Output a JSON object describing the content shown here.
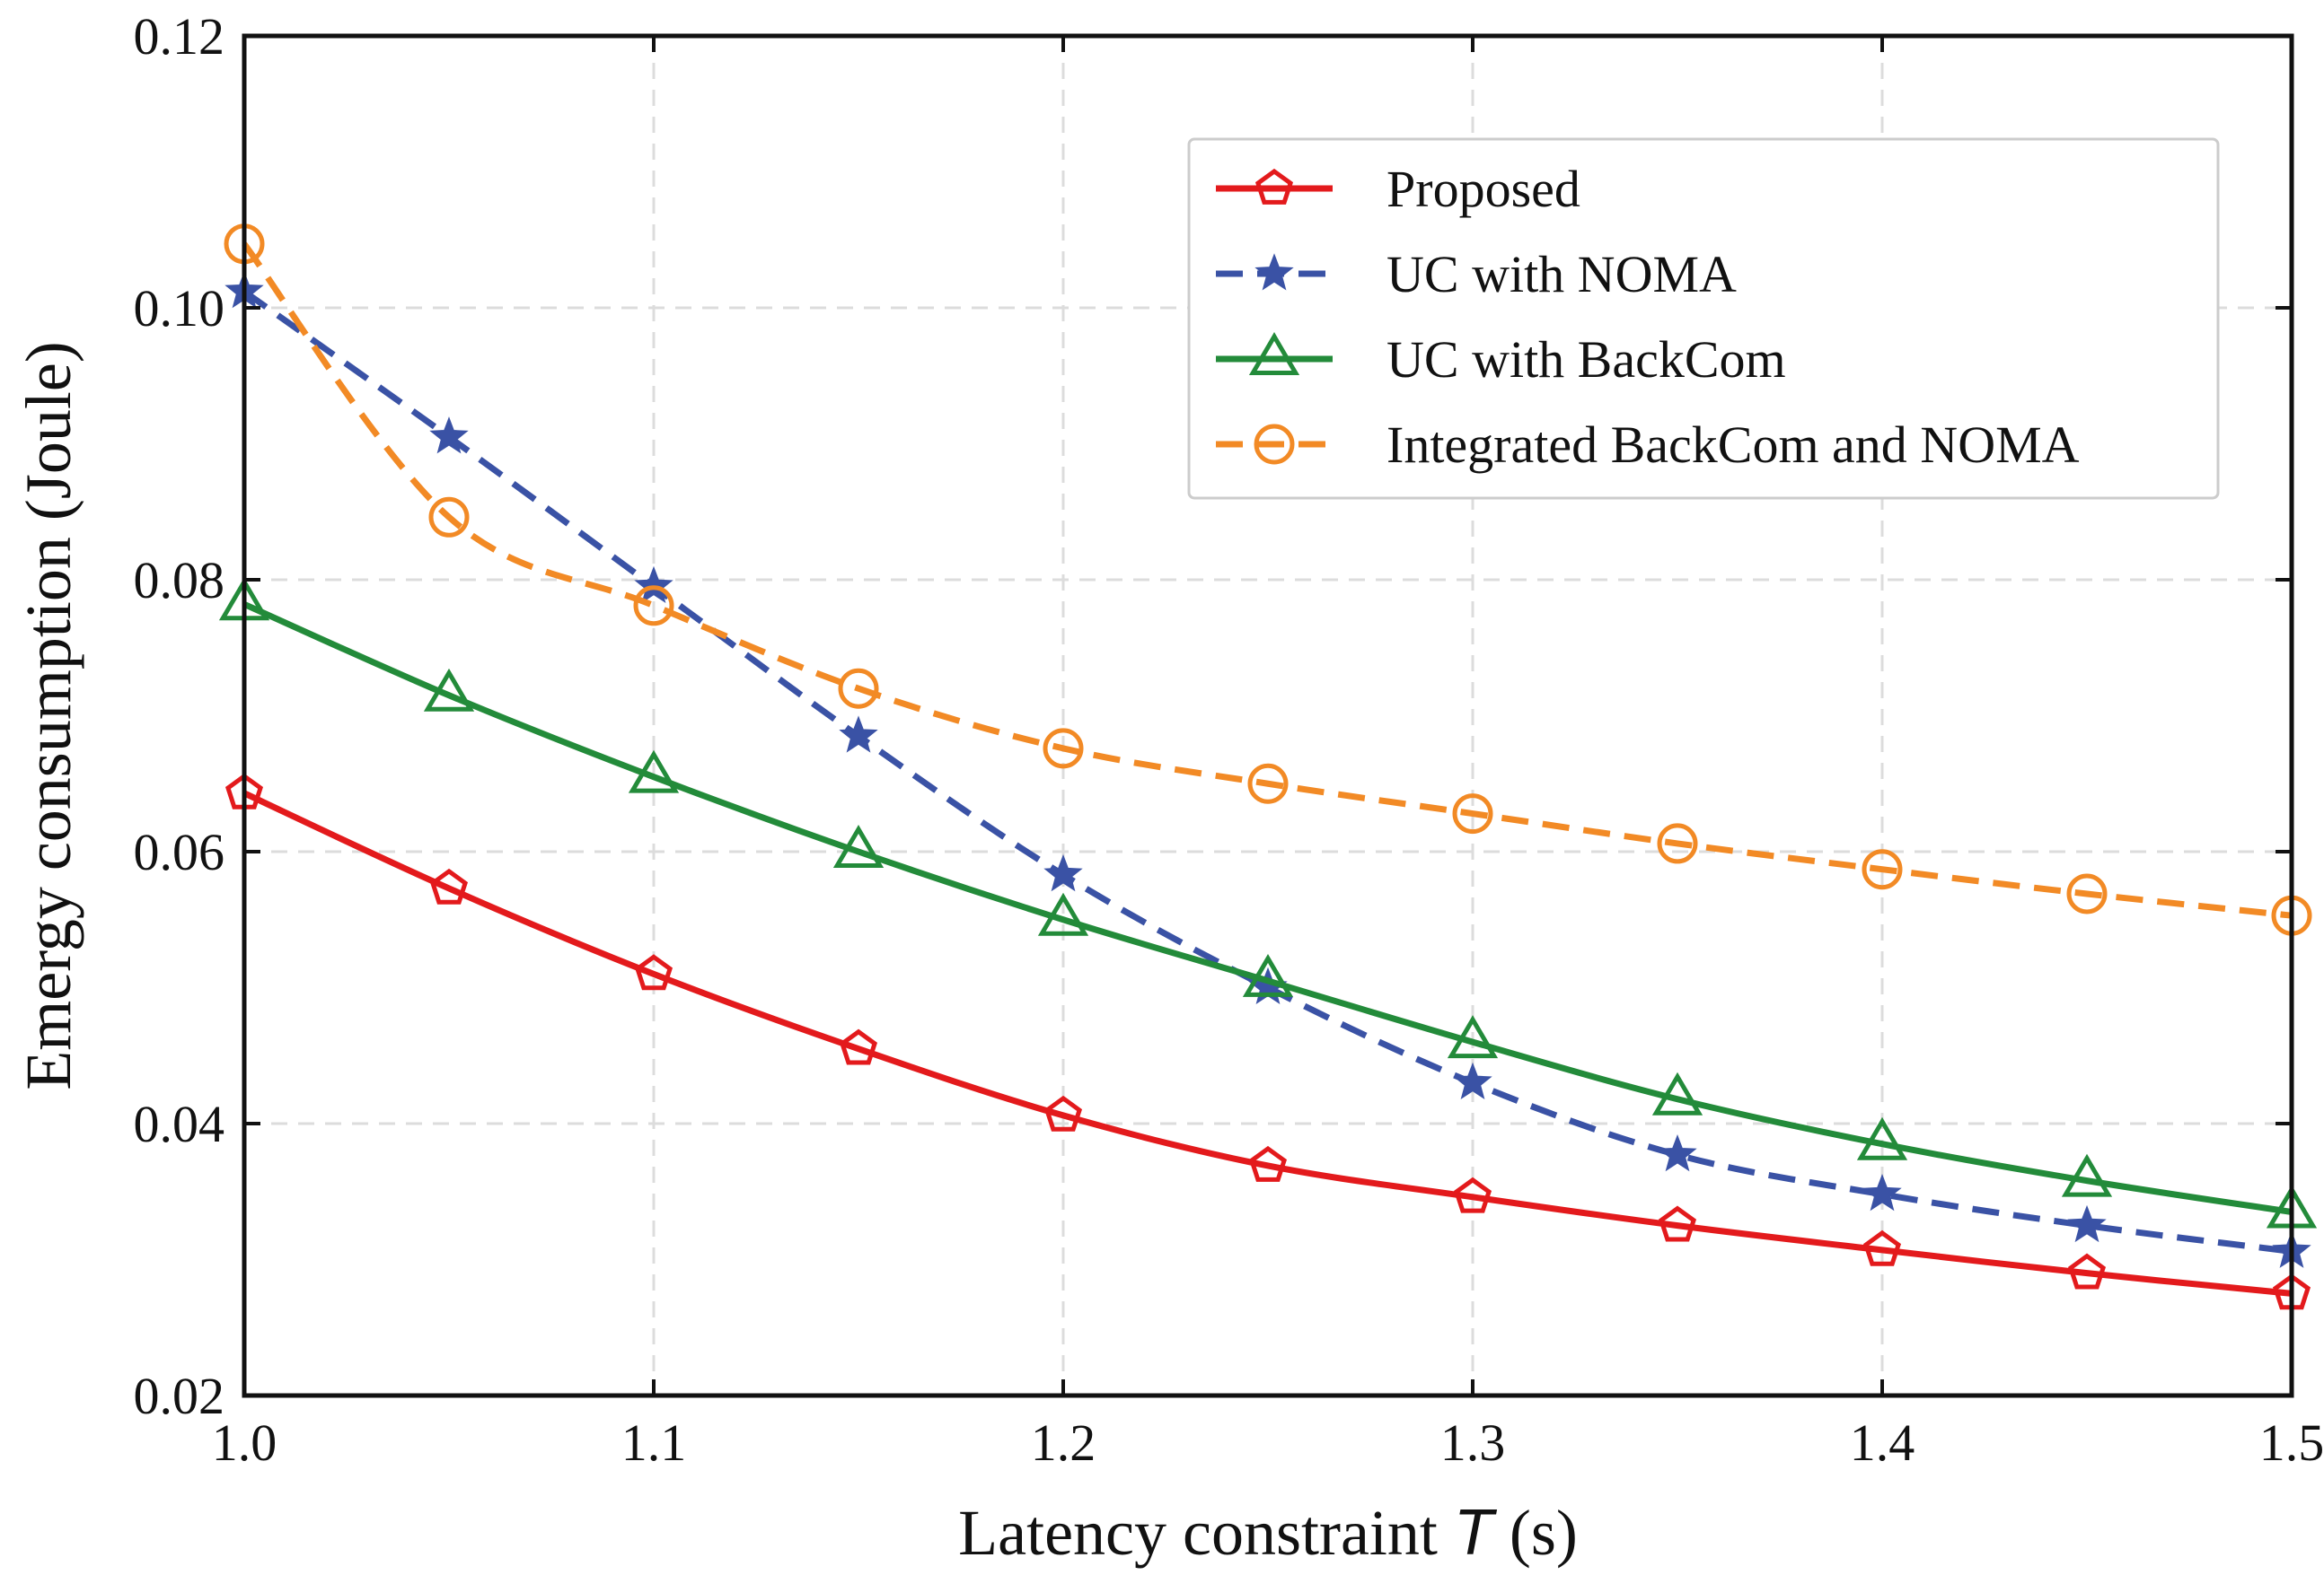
{
  "chart_data": {
    "type": "line",
    "title": "",
    "xlabel_prefix": "Latency constraint ",
    "xlabel_var": "T",
    "xlabel_suffix": " (s)",
    "ylabel": "Emergy consumption (Joule)",
    "xlim": [
      1.0,
      1.5
    ],
    "ylim": [
      0.02,
      0.12
    ],
    "xticks": [
      1.0,
      1.1,
      1.2,
      1.3,
      1.4,
      1.5
    ],
    "xtick_labels": [
      "1.0",
      "1.1",
      "1.2",
      "1.3",
      "1.4",
      "1.5"
    ],
    "yticks": [
      0.02,
      0.04,
      0.06,
      0.08,
      0.1,
      0.12
    ],
    "ytick_labels": [
      "0.02",
      "0.04",
      "0.06",
      "0.08",
      "0.10",
      "0.12"
    ],
    "grid": true,
    "legend_position": "top-right",
    "x": [
      1.0,
      1.05,
      1.1,
      1.15,
      1.2,
      1.25,
      1.3,
      1.35,
      1.4,
      1.45,
      1.5
    ],
    "series": [
      {
        "name": "Proposed",
        "color": "#e31a1c",
        "line_style": "solid",
        "marker": "pentagon",
        "values": [
          0.0643,
          0.0573,
          0.051,
          0.0455,
          0.0406,
          0.0369,
          0.0346,
          0.0325,
          0.0307,
          0.029,
          0.0275
        ]
      },
      {
        "name": "UC with NOMA",
        "color": "#3a52a5",
        "line_style": "dashed",
        "marker": "star",
        "values": [
          0.1012,
          0.0905,
          0.0795,
          0.0685,
          0.0583,
          0.05,
          0.043,
          0.0377,
          0.0348,
          0.0325,
          0.0306
        ]
      },
      {
        "name": "UC with BackCom",
        "color": "#238b3a",
        "line_style": "solid",
        "marker": "triangle",
        "values": [
          0.0782,
          0.0715,
          0.0655,
          0.06,
          0.055,
          0.0505,
          0.046,
          0.0418,
          0.0385,
          0.0358,
          0.0335
        ]
      },
      {
        "name": "Integrated BackCom and NOMA",
        "color": "#f28a25",
        "line_style": "dashed",
        "marker": "circle",
        "values": [
          0.1047,
          0.0846,
          0.0781,
          0.072,
          0.0676,
          0.065,
          0.0628,
          0.0606,
          0.0587,
          0.0569,
          0.0553
        ]
      }
    ]
  }
}
